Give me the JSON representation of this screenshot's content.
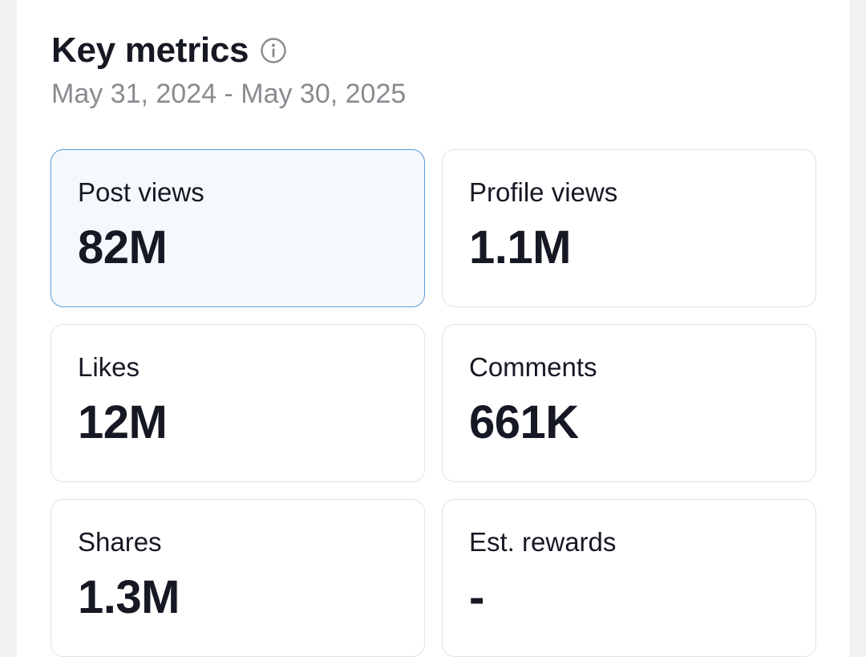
{
  "header": {
    "title": "Key metrics",
    "info_icon": "info-circle-icon",
    "date_range": "May 31, 2024 - May 30, 2025"
  },
  "metrics": [
    {
      "label": "Post views",
      "value": "82M",
      "selected": true
    },
    {
      "label": "Profile views",
      "value": "1.1M",
      "selected": false
    },
    {
      "label": "Likes",
      "value": "12M",
      "selected": false
    },
    {
      "label": "Comments",
      "value": "661K",
      "selected": false
    },
    {
      "label": "Shares",
      "value": "1.3M",
      "selected": false
    },
    {
      "label": "Est. rewards",
      "value": "-",
      "selected": false
    }
  ],
  "colors": {
    "selected_border": "#5a9ad6",
    "selected_background": "#f4f9fd",
    "card_border": "#e3e3e6",
    "muted_text": "#8a8b91"
  }
}
